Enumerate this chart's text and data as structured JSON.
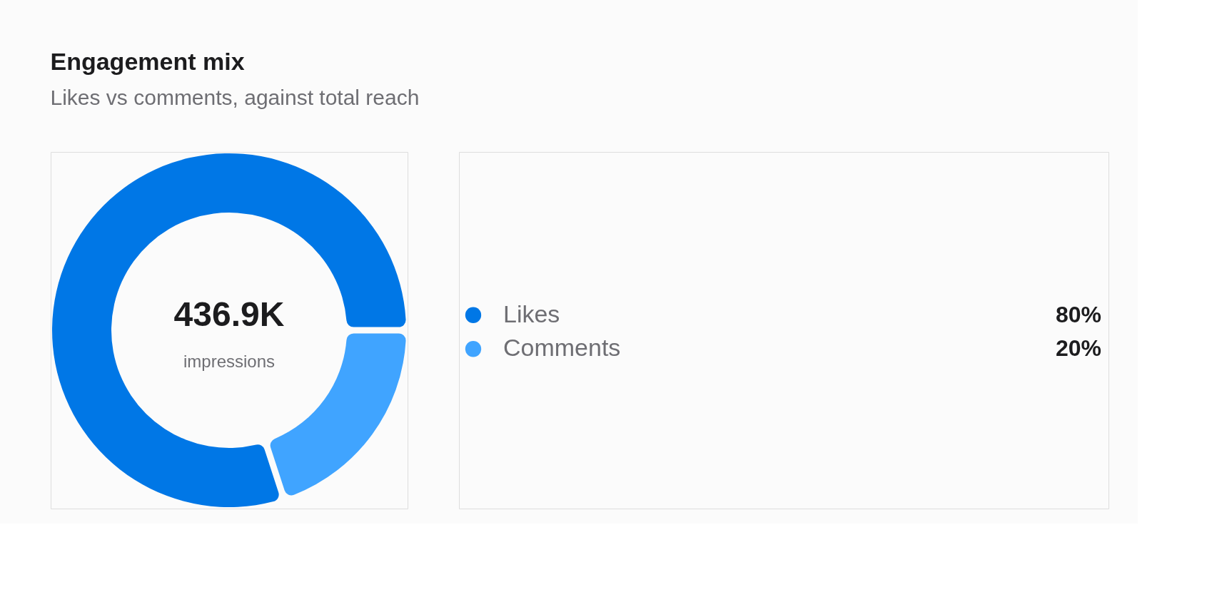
{
  "chart_data": {
    "type": "donut",
    "title": "Engagement mix",
    "subtitle": "Likes vs comments, against total reach",
    "categories": [
      "Likes",
      "Comments"
    ],
    "values": [
      80,
      20
    ],
    "value_labels": [
      "80%",
      "20%"
    ],
    "colors": [
      "#0077e6",
      "#40a4ff"
    ],
    "annotations": [
      "436.9K",
      "impressions"
    ],
    "legend": "right"
  }
}
